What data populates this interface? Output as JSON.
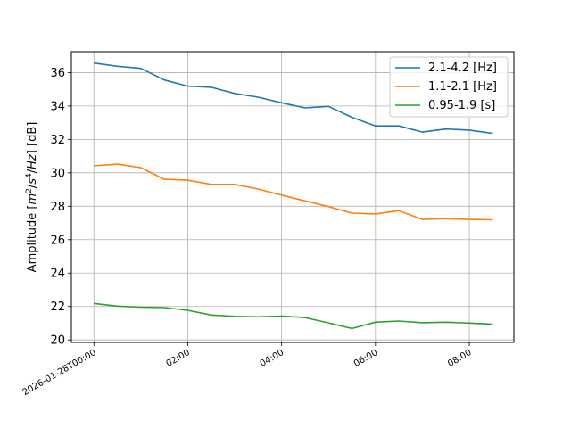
{
  "chart_data": {
    "type": "line",
    "xlabel": "",
    "ylabel": "Amplitude [m²/s⁴/Hz] [dB]",
    "ylabel_parts": {
      "prefix": "Amplitude [",
      "m": "m",
      "sup2": "2",
      "slash1": "/",
      "s": "s",
      "sup4": "4",
      "slash2": "/",
      "hz": "Hz",
      "suffix": "] [dB]"
    },
    "grid": true,
    "legend_position": "top-right",
    "x_range_hours": [
      -0.48,
      8.95
    ],
    "ylim": [
      19.85,
      37.25
    ],
    "x_ticks": [
      {
        "hour": 0,
        "label": "2026-01-28T00:00"
      },
      {
        "hour": 2,
        "label": "02:00"
      },
      {
        "hour": 4,
        "label": "04:00"
      },
      {
        "hour": 6,
        "label": "06:00"
      },
      {
        "hour": 8,
        "label": "08:00"
      }
    ],
    "y_ticks": [
      20,
      22,
      24,
      26,
      28,
      30,
      32,
      34,
      36
    ],
    "x": [
      "2026-01-28T00:00",
      "2026-01-28T00:30",
      "2026-01-28T01:00",
      "2026-01-28T01:30",
      "2026-01-28T02:00",
      "2026-01-28T02:30",
      "2026-01-28T03:00",
      "2026-01-28T03:30",
      "2026-01-28T04:00",
      "2026-01-28T04:30",
      "2026-01-28T05:00",
      "2026-01-28T05:30",
      "2026-01-28T06:00",
      "2026-01-28T06:30",
      "2026-01-28T07:00",
      "2026-01-28T07:30",
      "2026-01-28T08:00",
      "2026-01-28T08:30"
    ],
    "series": [
      {
        "name": "2.1-4.2 [Hz]",
        "color": "#1f77b4",
        "values": [
          36.57,
          36.38,
          36.25,
          35.56,
          35.19,
          35.12,
          34.75,
          34.53,
          34.19,
          33.89,
          33.98,
          33.32,
          32.81,
          32.81,
          32.44,
          32.62,
          32.56,
          32.36
        ]
      },
      {
        "name": "1.1-2.1 [Hz]",
        "color": "#ff7f0e",
        "values": [
          30.42,
          30.52,
          30.31,
          29.61,
          29.56,
          29.31,
          29.31,
          29.03,
          28.67,
          28.32,
          27.98,
          27.59,
          27.54,
          27.74,
          27.21,
          27.26,
          27.21,
          27.19
        ]
      },
      {
        "name": "0.95-1.9 [s]",
        "color": "#2ca02c",
        "values": [
          22.18,
          22.02,
          21.96,
          21.93,
          21.77,
          21.49,
          21.41,
          21.38,
          21.42,
          21.34,
          21.02,
          20.68,
          21.06,
          21.13,
          21.03,
          21.06,
          21.01,
          20.94
        ]
      }
    ]
  }
}
